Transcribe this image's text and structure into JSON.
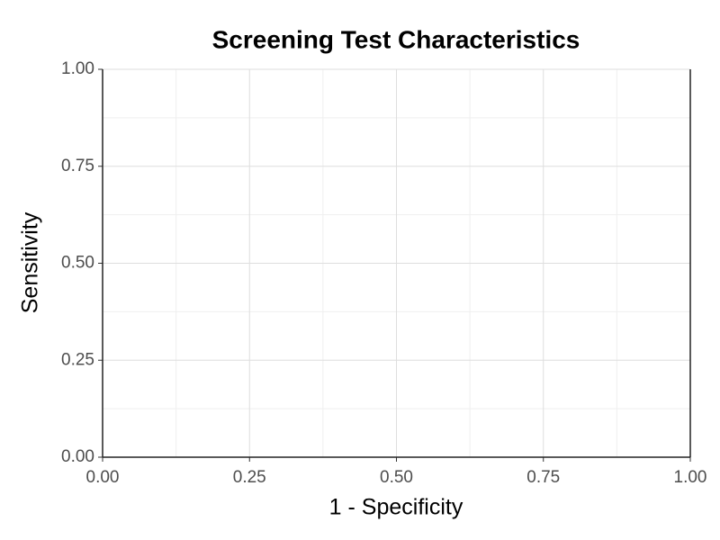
{
  "chart_data": {
    "type": "line",
    "title": "Screening Test Characteristics",
    "xlabel": "1 - Specificity",
    "ylabel": "Sensitivity",
    "series": [],
    "xlim": [
      0,
      1
    ],
    "ylim": [
      0,
      1
    ],
    "xticks": [
      {
        "value": 0,
        "label": "0.00"
      },
      {
        "value": 0.25,
        "label": "0.25"
      },
      {
        "value": 0.5,
        "label": "0.50"
      },
      {
        "value": 0.75,
        "label": "0.75"
      },
      {
        "value": 1,
        "label": "1.00"
      }
    ],
    "yticks": [
      {
        "value": 0,
        "label": "0.00"
      },
      {
        "value": 0.25,
        "label": "0.25"
      },
      {
        "value": 0.5,
        "label": "0.50"
      },
      {
        "value": 0.75,
        "label": "0.75"
      },
      {
        "value": 1,
        "label": "1.00"
      }
    ],
    "grid": true,
    "minor_grid": true
  }
}
